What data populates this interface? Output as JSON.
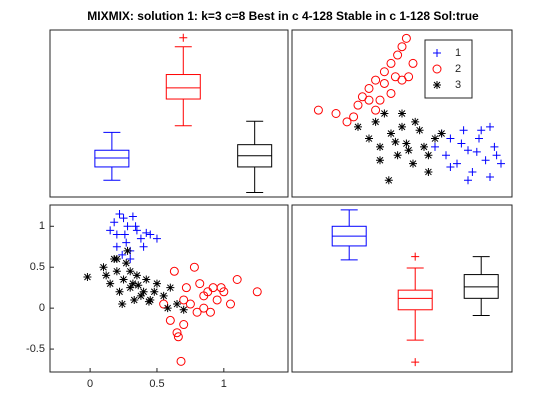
{
  "title": "MIXMIX: solution 1: k=3 c=8 Best in c 4-128 Stable in c 1-128 Sol:true",
  "chart_data": [
    {
      "type": "box",
      "ylim": [
        -0.05,
        1.45
      ],
      "boxes": [
        {
          "color": "#0000ff",
          "whisker_low": 0.1,
          "q1": 0.22,
          "median": 0.3,
          "q3": 0.37,
          "whisker_high": 0.53
        },
        {
          "color": "#ff0000",
          "whisker_low": 0.59,
          "q1": 0.83,
          "median": 0.93,
          "q3": 1.05,
          "whisker_high": 1.3,
          "outliers": [
            1.38
          ]
        },
        {
          "color": "#000000",
          "whisker_low": -0.01,
          "q1": 0.22,
          "median": 0.32,
          "q3": 0.42,
          "whisker_high": 0.63
        }
      ]
    },
    {
      "type": "scatter",
      "xlim": [
        0,
        1
      ],
      "ylim": [
        0,
        1
      ],
      "legend": "upper right",
      "series": [
        {
          "name": "1",
          "color": "#0000ff",
          "marker": "+",
          "x": [
            0.65,
            0.7,
            0.72,
            0.75,
            0.78,
            0.8,
            0.82,
            0.85,
            0.88,
            0.9,
            0.92,
            0.95,
            0.72,
            0.8,
            0.86,
            0.93,
            0.68,
            0.77,
            0.84,
            0.9
          ],
          "values": [
            0.3,
            0.25,
            0.35,
            0.2,
            0.4,
            0.28,
            0.15,
            0.35,
            0.22,
            0.42,
            0.3,
            0.2,
            0.18,
            0.1,
            0.4,
            0.25,
            0.38,
            0.32,
            0.27,
            0.12
          ]
        },
        {
          "name": "2",
          "color": "#ff0000",
          "marker": "o",
          "x": [
            0.12,
            0.2,
            0.25,
            0.3,
            0.32,
            0.35,
            0.38,
            0.4,
            0.42,
            0.45,
            0.47,
            0.5,
            0.5,
            0.52,
            0.55,
            0.45,
            0.38,
            0.28,
            0.48,
            0.42,
            0.53,
            0.35
          ],
          "values": [
            0.52,
            0.5,
            0.45,
            0.55,
            0.6,
            0.65,
            0.7,
            0.58,
            0.75,
            0.8,
            0.72,
            0.9,
            0.7,
            0.95,
            0.8,
            0.62,
            0.52,
            0.48,
            0.85,
            0.68,
            0.72,
            0.58
          ]
        },
        {
          "name": "3",
          "color": "#000000",
          "marker": "*",
          "x": [
            0.3,
            0.35,
            0.38,
            0.4,
            0.42,
            0.45,
            0.48,
            0.5,
            0.52,
            0.55,
            0.58,
            0.6,
            0.62,
            0.65,
            0.68,
            0.44,
            0.5,
            0.56,
            0.4,
            0.62,
            0.47,
            0.53
          ],
          "values": [
            0.42,
            0.35,
            0.45,
            0.3,
            0.5,
            0.38,
            0.25,
            0.42,
            0.32,
            0.2,
            0.4,
            0.3,
            0.15,
            0.35,
            0.38,
            0.1,
            0.5,
            0.45,
            0.22,
            0.25,
            0.33,
            0.28
          ]
        }
      ]
    },
    {
      "type": "scatter",
      "xlim": [
        -0.3,
        1.48
      ],
      "ylim": [
        -0.78,
        1.26
      ],
      "xticks": [
        0,
        0.5,
        1
      ],
      "yticks": [
        -0.5,
        0,
        0.5,
        1
      ],
      "series": [
        {
          "color": "#0000ff",
          "marker": "+",
          "x": [
            0.15,
            0.18,
            0.2,
            0.22,
            0.25,
            0.27,
            0.28,
            0.3,
            0.32,
            0.35,
            0.38,
            0.4,
            0.45,
            0.5,
            0.24,
            0.3,
            0.34,
            0.2,
            0.42,
            0.26
          ],
          "values": [
            0.95,
            1.05,
            0.9,
            1.15,
            1.1,
            0.8,
            1.0,
            0.7,
            1.12,
            0.95,
            0.85,
            0.75,
            0.9,
            0.85,
            0.65,
            0.6,
            1.0,
            0.75,
            0.92,
            0.9
          ]
        },
        {
          "color": "#ff0000",
          "marker": "o",
          "x": [
            0.55,
            0.6,
            0.65,
            0.68,
            0.7,
            0.72,
            0.75,
            0.8,
            0.82,
            0.85,
            0.88,
            0.9,
            0.92,
            0.95,
            1.0,
            1.05,
            1.1,
            1.25,
            0.63,
            0.7,
            0.78,
            0.98,
            0.85,
            0.66
          ],
          "values": [
            0.05,
            -0.15,
            -0.3,
            -0.65,
            0.1,
            0.25,
            0.05,
            -0.05,
            0.3,
            0.15,
            0.2,
            -0.05,
            0.25,
            0.1,
            0.2,
            0.05,
            0.35,
            0.2,
            0.45,
            -0.2,
            0.5,
            0.25,
            0.0,
            -0.35
          ]
        },
        {
          "color": "#000000",
          "marker": "*",
          "x": [
            -0.02,
            0.1,
            0.15,
            0.18,
            0.2,
            0.22,
            0.25,
            0.27,
            0.3,
            0.32,
            0.35,
            0.38,
            0.4,
            0.42,
            0.45,
            0.5,
            0.55,
            0.6,
            0.65,
            0.7,
            0.28,
            0.33,
            0.12,
            0.36,
            0.24,
            0.48,
            0.3,
            0.58,
            0.2,
            0.44
          ],
          "values": [
            0.38,
            0.5,
            0.3,
            0.6,
            0.45,
            0.2,
            0.35,
            0.55,
            0.25,
            0.3,
            0.4,
            0.15,
            0.2,
            0.35,
            0.1,
            0.3,
            0.15,
            0.25,
            0.05,
            -0.02,
            0.7,
            0.1,
            0.4,
            0.28,
            0.05,
            0.2,
            0.45,
            0.0,
            0.6,
            0.08
          ]
        }
      ]
    },
    {
      "type": "box",
      "ylim": [
        -0.78,
        1.26
      ],
      "boxes": [
        {
          "color": "#0000ff",
          "whisker_low": 0.59,
          "q1": 0.76,
          "median": 0.88,
          "q3": 1.0,
          "whisker_high": 1.2
        },
        {
          "color": "#ff0000",
          "whisker_low": -0.39,
          "q1": -0.02,
          "median": 0.12,
          "q3": 0.22,
          "whisker_high": 0.49,
          "outliers": [
            0.63,
            -0.66
          ]
        },
        {
          "color": "#000000",
          "whisker_low": -0.09,
          "q1": 0.12,
          "median": 0.26,
          "q3": 0.41,
          "whisker_high": 0.63
        }
      ]
    }
  ]
}
